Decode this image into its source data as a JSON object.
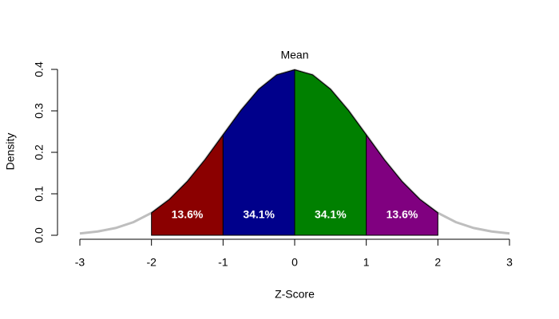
{
  "chart_data": {
    "type": "density",
    "x_label": "Z-Score",
    "y_label": "Density",
    "x": [
      -3,
      -2.75,
      -2.5,
      -2.25,
      -2,
      -1.75,
      -1.5,
      -1.25,
      -1,
      -0.75,
      -0.5,
      -0.25,
      0,
      0.25,
      0.5,
      0.75,
      1,
      1.25,
      1.5,
      1.75,
      2,
      2.25,
      2.5,
      2.75,
      3
    ],
    "values": [
      0.0044,
      0.0091,
      0.0175,
      0.0317,
      0.054,
      0.0863,
      0.1295,
      0.1826,
      0.242,
      0.3011,
      0.3521,
      0.3867,
      0.3989,
      0.3867,
      0.3521,
      0.3011,
      0.242,
      0.1826,
      0.1295,
      0.0863,
      0.054,
      0.0317,
      0.0175,
      0.0091,
      0.0044
    ],
    "color": "#bebebe",
    "regions": {
      "bounds": [
        -2,
        -1,
        0,
        1,
        2
      ],
      "values": [
        13.6,
        34.1,
        34.1,
        13.6
      ],
      "value_labels": [
        "13.6%",
        "34.1%",
        "34.1%",
        "13.6%"
      ],
      "colors": [
        "#8b0000",
        "#00008b",
        "#008000",
        "#800080"
      ]
    },
    "annotation": {
      "text": "Mean",
      "x": 0
    },
    "xlim": [
      -3,
      3
    ],
    "xticks": [
      -3,
      -2,
      -1,
      0,
      1,
      2,
      3
    ],
    "ylim": [
      0,
      0.4
    ],
    "yticks": [
      {
        "value": 0,
        "label": "0.0"
      },
      0.1,
      0.2,
      0.3,
      0.4
    ]
  }
}
